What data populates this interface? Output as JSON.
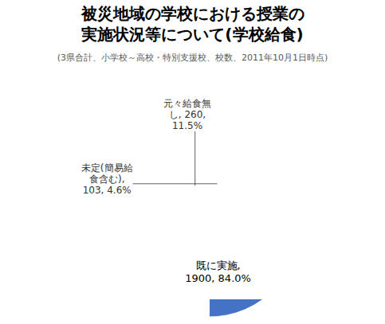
{
  "chart_data": {
    "type": "pie",
    "title": "被災地域の学校における授業の\n実施状況等について(学校給食)",
    "subtitle": "(3県合計、小学校～高校・特別支援校、校数、2011年10月1日時点)",
    "values": [
      1900,
      260,
      103
    ],
    "value_labels": [
      "既に実施,\n1900, 84.0%",
      "元々給食無\nし, 260,\n11.5%",
      "未定(簡易給\n食含む),\n103, 4.6%"
    ],
    "colors": [
      "#4472C4",
      "#9BBB59",
      "#C0504D"
    ],
    "data_labels": true
  }
}
